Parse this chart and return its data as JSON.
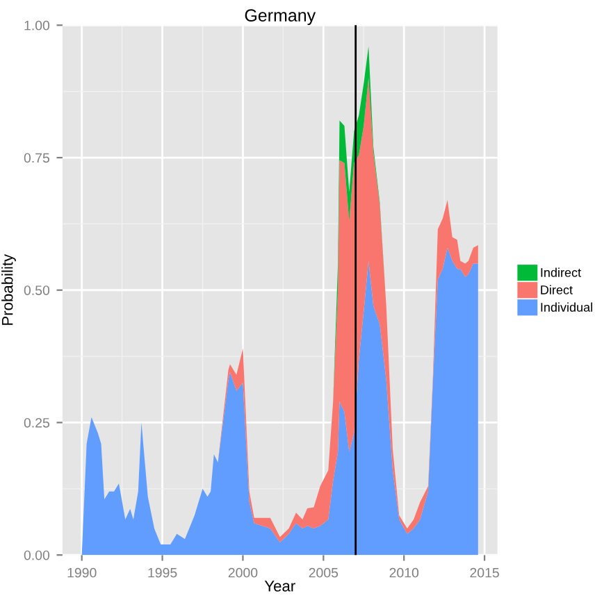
{
  "chart_data": {
    "type": "area",
    "stacked": true,
    "title": "Germany",
    "xlabel": "Year",
    "ylabel": "Probability",
    "x": [
      1990.0,
      1990.3,
      1990.6,
      1991.0,
      1991.2,
      1991.4,
      1991.7,
      1992.0,
      1992.3,
      1992.7,
      1993.0,
      1993.2,
      1993.5,
      1993.7,
      1994.1,
      1994.5,
      1994.9,
      1995.5,
      1995.9,
      1996.4,
      1997.0,
      1997.5,
      1997.8,
      1998.0,
      1998.2,
      1998.45,
      1999.1,
      1999.2,
      1999.6,
      2000.0,
      2000.4,
      2000.7,
      2001.7,
      2002.3,
      2002.85,
      2003.3,
      2003.7,
      2004.0,
      2004.4,
      2004.8,
      2005.3,
      2005.6,
      2005.9,
      2006.0,
      2006.3,
      2006.6,
      2006.9,
      2007.2,
      2007.5,
      2007.8,
      2008.1,
      2008.5,
      2008.9,
      2009.3,
      2009.7,
      2010.2,
      2010.6,
      2011.0,
      2011.5,
      2011.8,
      2012.1,
      2012.4,
      2012.7,
      2013.0,
      2013.3,
      2013.5,
      2013.8,
      2014.0,
      2014.3,
      2014.6
    ],
    "series": [
      {
        "name": "Individual",
        "color": "#619cff",
        "values": [
          0,
          0.21,
          0.26,
          0.23,
          0.21,
          0.105,
          0.12,
          0.12,
          0.135,
          0.067,
          0.087,
          0.067,
          0.12,
          0.25,
          0.11,
          0.05,
          0.02,
          0.02,
          0.04,
          0.03,
          0.075,
          0.125,
          0.11,
          0.12,
          0.19,
          0.175,
          0.33,
          0.345,
          0.31,
          0.325,
          0.1,
          0.06,
          0.05,
          0.024,
          0.04,
          0.06,
          0.05,
          0.055,
          0.05,
          0.055,
          0.067,
          0.14,
          0.195,
          0.29,
          0.27,
          0.195,
          0.23,
          0.37,
          0.46,
          0.555,
          0.47,
          0.435,
          0.33,
          0.16,
          0.067,
          0.04,
          0.05,
          0.067,
          0.12,
          0.33,
          0.52,
          0.54,
          0.58,
          0.555,
          0.54,
          0.54,
          0.525,
          0.53,
          0.55,
          0.55
        ]
      },
      {
        "name": "Direct",
        "color": "#f8766d",
        "values": [
          0,
          0,
          0,
          0,
          0,
          0,
          0,
          0,
          0,
          0,
          0,
          0,
          0,
          0,
          0,
          0,
          0,
          0,
          0,
          0,
          0,
          0,
          0,
          0,
          0,
          0,
          0.02,
          0.015,
          0.03,
          0.065,
          0.02,
          0.01,
          0.02,
          0.01,
          0.01,
          0.02,
          0.017,
          0.033,
          0.04,
          0.075,
          0.093,
          0.15,
          0.305,
          0.455,
          0.47,
          0.435,
          0.51,
          0.385,
          0.35,
          0.345,
          0.29,
          0.225,
          0.14,
          0.04,
          0.008,
          0.01,
          0.017,
          0.033,
          0.01,
          0.01,
          0.095,
          0.095,
          0.09,
          0.045,
          0.055,
          0.015,
          0.025,
          0.025,
          0.03,
          0.035
        ]
      },
      {
        "name": "Indirect",
        "color": "#00ba38",
        "values": [
          0,
          0,
          0,
          0,
          0,
          0,
          0,
          0,
          0,
          0,
          0,
          0,
          0,
          0,
          0,
          0,
          0,
          0,
          0,
          0,
          0,
          0,
          0,
          0,
          0,
          0,
          0,
          0,
          0,
          0,
          0,
          0,
          0,
          0,
          0,
          0,
          0,
          0,
          0,
          0,
          0,
          0,
          0.05,
          0.075,
          0.07,
          0.055,
          0.06,
          0.075,
          0.08,
          0.06,
          0.01,
          0.005,
          0,
          0,
          0,
          0,
          0,
          0,
          0,
          0,
          0,
          0,
          0,
          0,
          0,
          0,
          0,
          0,
          0,
          0
        ]
      }
    ],
    "xlim": [
      1988.8,
      2015.8
    ],
    "ylim": [
      0,
      1
    ],
    "xticks": [
      1990,
      1995,
      2000,
      2005,
      2010,
      2015
    ],
    "yticks": [
      {
        "value": 0,
        "label": "0.00"
      },
      {
        "value": 0.25,
        "label": "0.25"
      },
      {
        "value": 0.5,
        "label": "0.50"
      },
      {
        "value": 0.75,
        "label": "0.75"
      },
      {
        "value": 1,
        "label": "1.00"
      }
    ],
    "ref_lines": [
      {
        "axis": "x",
        "value": 2007,
        "color": "#000000"
      }
    ],
    "grid": true,
    "legend": "right"
  }
}
